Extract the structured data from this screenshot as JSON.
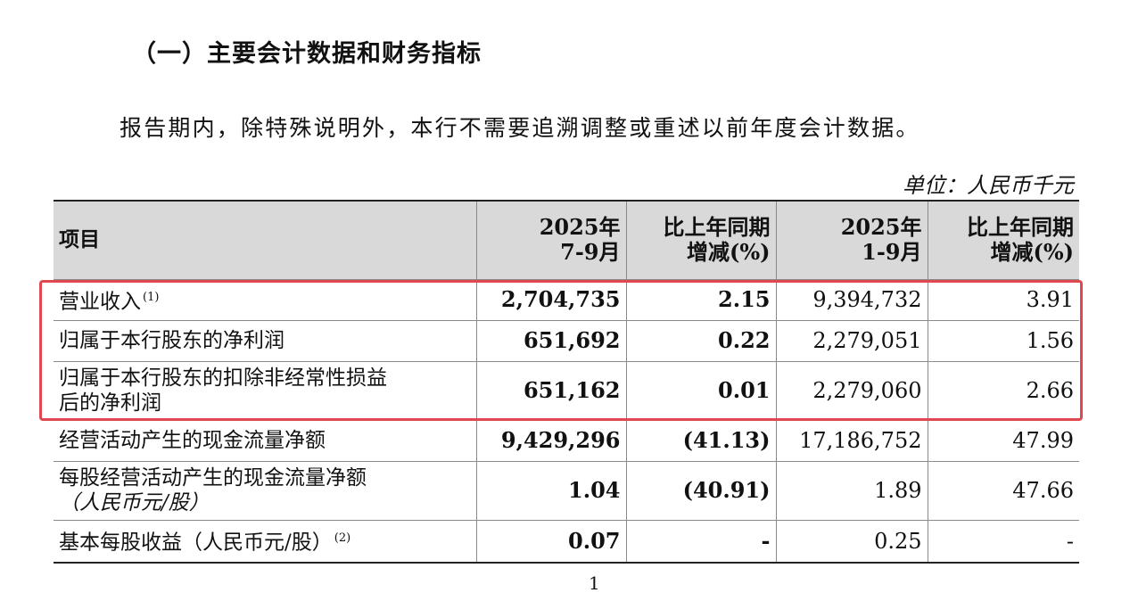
{
  "heading": "（一）主要会计数据和财务指标",
  "intro": "报告期内，除特殊说明外，本行不需要追溯调整或重述以前年度会计数据。",
  "unit": "单位：人民币千元",
  "table": {
    "header": {
      "item": "项目",
      "q3_line1": "2025年",
      "q3_line2": "7-9月",
      "q3_chg_line1": "比上年同期",
      "q3_chg_line2": "增减(%)",
      "ytd_line1": "2025年",
      "ytd_line2": "1-9月",
      "ytd_chg_line1": "比上年同期",
      "ytd_chg_line2": "增减(%)"
    },
    "rows": [
      {
        "label": "营业收入",
        "note": "(1)",
        "sub": "",
        "q3": "2,704,735",
        "q3_chg": "2.15",
        "ytd": "9,394,732",
        "ytd_chg": "3.91"
      },
      {
        "label": "归属于本行股东的净利润",
        "note": "",
        "sub": "",
        "q3": "651,692",
        "q3_chg": "0.22",
        "ytd": "2,279,051",
        "ytd_chg": "1.56"
      },
      {
        "label": "归属于本行股东的扣除非经常性损益",
        "note": "",
        "sub": "后的净利润",
        "q3": "651,162",
        "q3_chg": "0.01",
        "ytd": "2,279,060",
        "ytd_chg": "2.66"
      },
      {
        "label": "经营活动产生的现金流量净额",
        "note": "",
        "sub": "",
        "q3": "9,429,296",
        "q3_chg": "(41.13)",
        "ytd": "17,186,752",
        "ytd_chg": "47.99"
      },
      {
        "label": "每股经营活动产生的现金流量净额",
        "note": "",
        "sub": "（人民币元/股）",
        "q3": "1.04",
        "q3_chg": "(40.91)",
        "ytd": "1.89",
        "ytd_chg": "47.66"
      },
      {
        "label": "基本每股收益（人民币元/股）",
        "note": "(2)",
        "sub": "",
        "q3": "0.07",
        "q3_chg": "-",
        "ytd": "0.25",
        "ytd_chg": "-"
      }
    ]
  },
  "page_number": "1",
  "colors": {
    "header_bg": "#d9d9d9",
    "highlight_border": "#e0484f"
  }
}
